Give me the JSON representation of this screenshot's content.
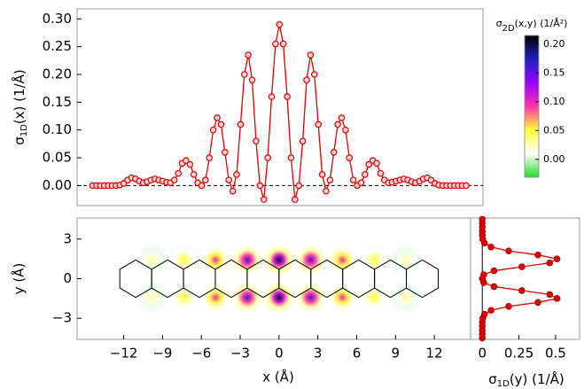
{
  "chart_data": [
    {
      "type": "line",
      "ylabel": {
        "symbol": "σ",
        "subscript": "1D",
        "text": "(x) (1/Å)"
      },
      "xlim": [
        -15.6,
        15.7
      ],
      "ylim": [
        -0.036,
        0.318
      ],
      "yticks": [
        {
          "value": 0,
          "label": "0.00"
        },
        {
          "value": 0.05,
          "label": "0.05"
        },
        {
          "value": 0.1,
          "label": "0.10"
        },
        {
          "value": 0.15,
          "label": "0.15"
        },
        {
          "value": 0.2,
          "label": "0.20"
        },
        {
          "value": 0.25,
          "label": "0.25"
        },
        {
          "value": 0.3,
          "label": "0.30"
        }
      ],
      "color": "#e00000",
      "x": [
        -14.4,
        -14.1,
        -13.8,
        -13.5,
        -13.2,
        -12.9,
        -12.6,
        -12.3,
        -12.0,
        -11.7,
        -11.4,
        -11.1,
        -10.8,
        -10.5,
        -10.2,
        -9.9,
        -9.6,
        -9.3,
        -9.0,
        -8.7,
        -8.4,
        -8.1,
        -7.8,
        -7.5,
        -7.2,
        -6.9,
        -6.6,
        -6.3,
        -6.0,
        -5.7,
        -5.4,
        -5.1,
        -4.8,
        -4.5,
        -4.2,
        -3.9,
        -3.6,
        -3.3,
        -3.0,
        -2.7,
        -2.4,
        -2.1,
        -1.8,
        -1.5,
        -1.2,
        -0.9,
        -0.6,
        -0.3,
        0,
        0.3,
        0.6,
        0.9,
        1.2,
        1.5,
        1.8,
        2.1,
        2.4,
        2.7,
        3.0,
        3.3,
        3.6,
        3.9,
        4.2,
        4.5,
        4.8,
        5.1,
        5.4,
        5.7,
        6.0,
        6.3,
        6.6,
        6.9,
        7.2,
        7.5,
        7.8,
        8.1,
        8.4,
        8.7,
        9.0,
        9.3,
        9.6,
        9.9,
        10.2,
        10.5,
        10.8,
        11.1,
        11.4,
        11.7,
        12.0,
        12.3,
        12.6,
        12.9,
        13.2,
        13.5,
        13.8,
        14.1,
        14.4
      ],
      "values": [
        0,
        0,
        0,
        0,
        0,
        0,
        0,
        0.001,
        0.004,
        0.01,
        0.014,
        0.012,
        0.008,
        0.005,
        0.007,
        0.01,
        0.012,
        0.01,
        0.008,
        0.006,
        0.005,
        0.01,
        0.022,
        0.04,
        0.045,
        0.038,
        0.02,
        0.005,
        0,
        0.01,
        0.05,
        0.1,
        0.122,
        0.11,
        0.06,
        0.01,
        -0.01,
        0.02,
        0.11,
        0.2,
        0.235,
        0.19,
        0.08,
        0,
        -0.025,
        0.05,
        0.16,
        0.255,
        0.29,
        0.255,
        0.16,
        0.05,
        -0.025,
        0,
        0.08,
        0.19,
        0.235,
        0.2,
        0.11,
        0.02,
        -0.01,
        0.01,
        0.06,
        0.11,
        0.122,
        0.1,
        0.05,
        0.01,
        0,
        0.005,
        0.02,
        0.038,
        0.045,
        0.04,
        0.022,
        0.01,
        0.005,
        0.006,
        0.008,
        0.01,
        0.012,
        0.01,
        0.007,
        0.005,
        0.008,
        0.012,
        0.014,
        0.01,
        0.004,
        0.001,
        0,
        0,
        0,
        0,
        0,
        0,
        0
      ]
    },
    {
      "type": "heatmap",
      "xlabel": "x (Å)",
      "ylabel": "y (Å)",
      "xlim": [
        -15.6,
        14.8
      ],
      "ylim": [
        -4.6,
        4.6
      ],
      "xticks": [
        {
          "value": -12,
          "label": "−12"
        },
        {
          "value": -9,
          "label": "−9"
        },
        {
          "value": -6,
          "label": "−6"
        },
        {
          "value": -3,
          "label": "−3"
        },
        0,
        3,
        6,
        9,
        12
      ],
      "yticks": [
        {
          "value": -3,
          "label": "−3"
        },
        0,
        3
      ],
      "points": {
        "x": [
          -9.8,
          -7.35,
          -4.9,
          -2.45,
          0,
          2.45,
          4.9,
          7.35,
          9.8,
          -9.8,
          -7.35,
          -4.9,
          -2.45,
          0,
          2.45,
          4.9,
          7.35,
          9.8
        ],
        "y": [
          1.42,
          1.42,
          1.42,
          1.42,
          1.42,
          1.42,
          1.42,
          1.42,
          1.42,
          -1.42,
          -1.42,
          -1.42,
          -1.42,
          -1.42,
          -1.42,
          -1.42,
          -1.42,
          -1.42
        ],
        "values": [
          0.03,
          0.05,
          0.1,
          0.16,
          0.2,
          0.16,
          0.1,
          0.05,
          0.03,
          0.03,
          0.05,
          0.1,
          0.16,
          0.2,
          0.16,
          0.1,
          0.05,
          0.03
        ]
      },
      "colorbar_label": {
        "symbol": "σ",
        "subscript": "2D",
        "text": "(x,y) (1/Å²)"
      },
      "clim": [
        -0.031,
        0.215
      ],
      "cticks": [
        {
          "value": 0,
          "label": "0.00"
        },
        {
          "value": 0.05,
          "label": "0.05"
        },
        {
          "value": 0.1,
          "label": "0.10"
        },
        {
          "value": 0.15,
          "label": "0.15"
        },
        {
          "value": 0.2,
          "label": "0.20"
        }
      ],
      "colormap": [
        "#22dd22",
        "#ffffff",
        "#ffff33",
        "#ff33aa",
        "#9900ff",
        "#2020c0",
        "#000000"
      ]
    },
    {
      "type": "line",
      "orientation": "horizontal",
      "xlabel": {
        "symbol": "σ",
        "subscript": "1D",
        "text": "(y) (1/Å)"
      },
      "xlim": [
        -0.08,
        0.67
      ],
      "ylim": [
        -4.6,
        4.6
      ],
      "xticks": [
        0,
        0.25,
        0.5
      ],
      "color": "#e00000",
      "y": [
        -4.5,
        -4.2,
        -3.9,
        -3.6,
        -3.3,
        -3.0,
        -2.7,
        -2.4,
        -2.1,
        -1.8,
        -1.5,
        -1.2,
        -0.9,
        -0.6,
        -0.3,
        0,
        0.3,
        0.6,
        0.9,
        1.2,
        1.5,
        1.8,
        2.1,
        2.4,
        2.7,
        3.0,
        3.3,
        3.6,
        3.9,
        4.2,
        4.5
      ],
      "values": [
        0,
        0,
        0,
        0,
        0,
        0.003,
        0.015,
        0.06,
        0.18,
        0.38,
        0.51,
        0.46,
        0.27,
        0.08,
        0.01,
        0,
        0.01,
        0.08,
        0.27,
        0.46,
        0.51,
        0.38,
        0.18,
        0.06,
        0.015,
        0.003,
        0,
        0,
        0,
        0,
        0
      ]
    }
  ]
}
